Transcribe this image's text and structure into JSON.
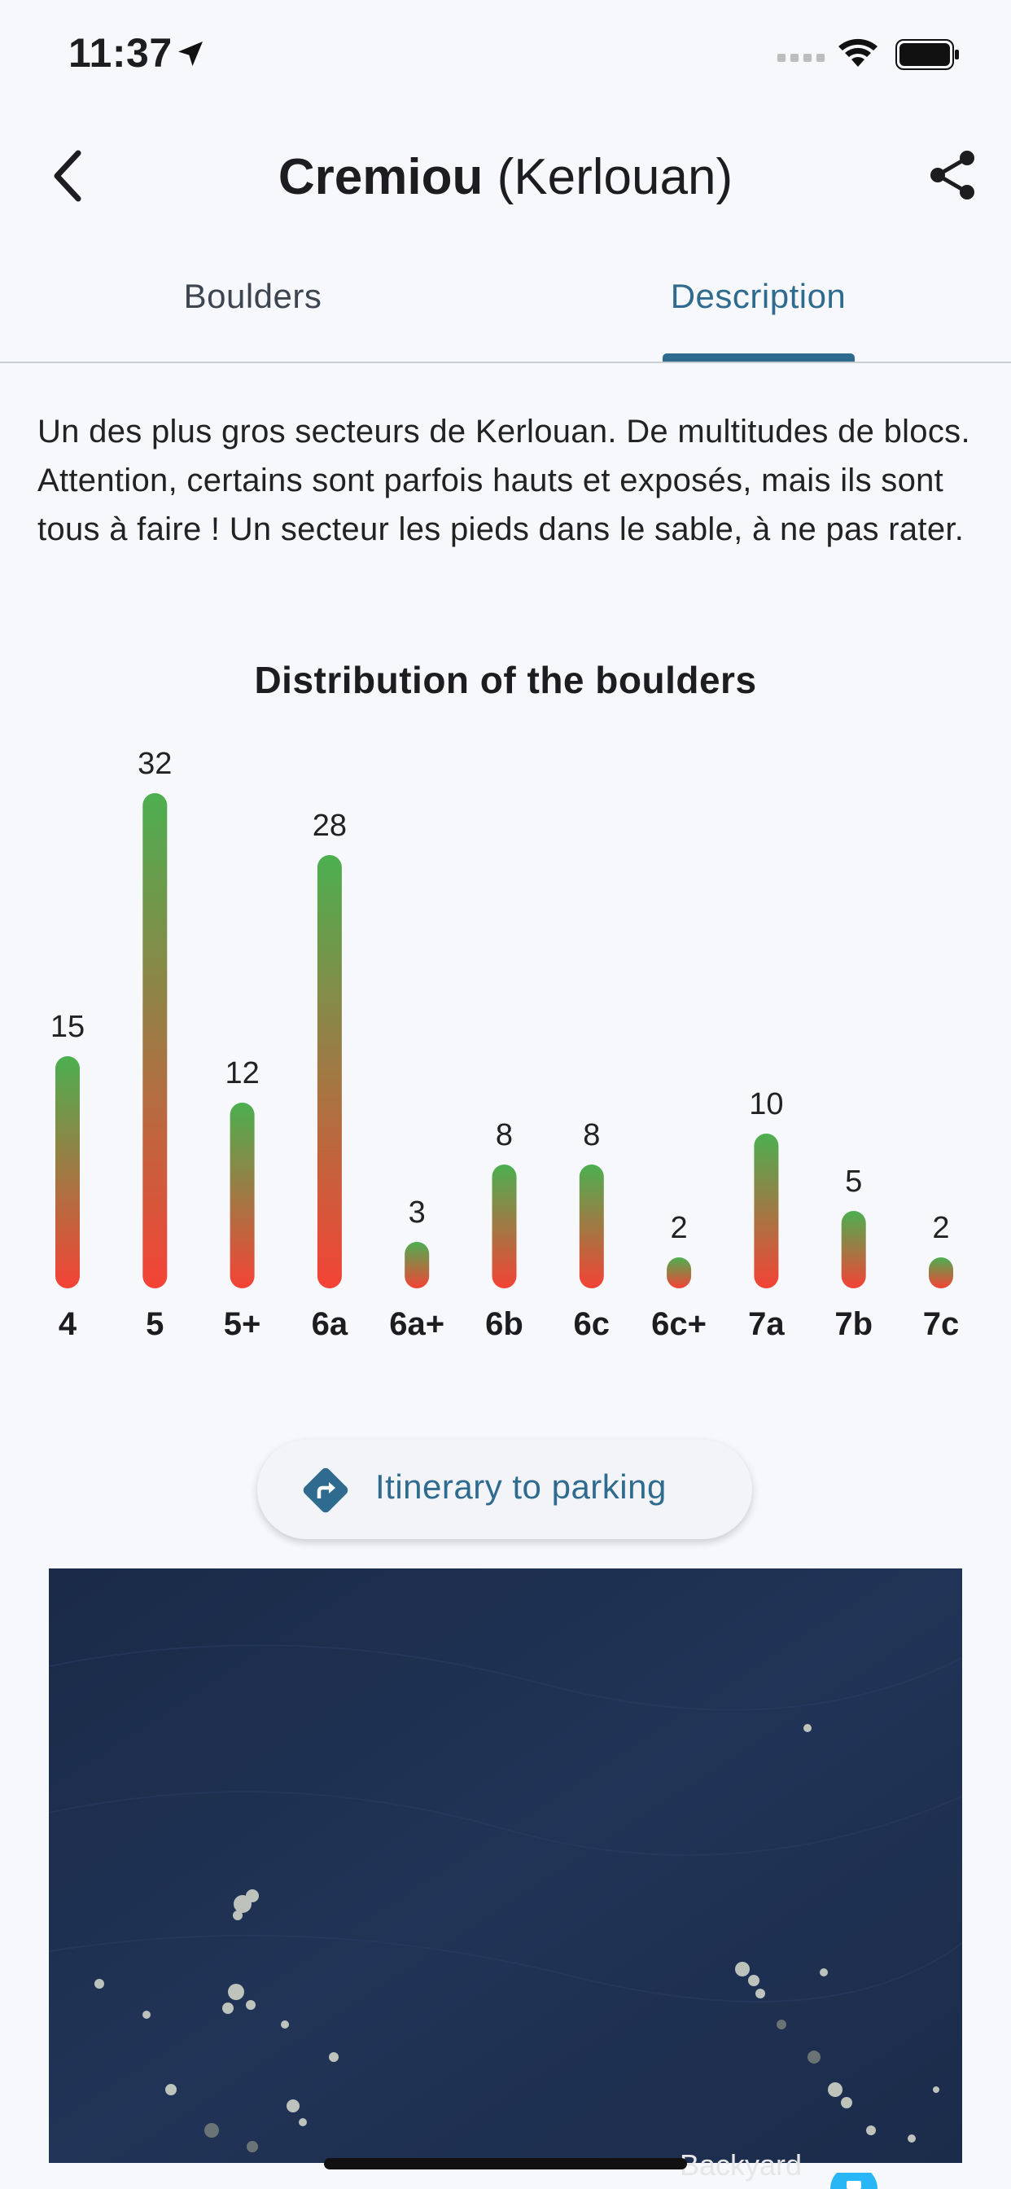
{
  "status_bar": {
    "time": "11:37"
  },
  "nav": {
    "title_bold": "Cremiou",
    "title_light": "(Kerlouan)"
  },
  "tabs": [
    {
      "label": "Boulders",
      "selected": false
    },
    {
      "label": "Description",
      "selected": true
    }
  ],
  "description": "Un des plus gros secteurs de Kerlouan. De multitudes de blocs. Attention, certains sont parfois hauts et exposés, mais ils sont tous à faire ! Un secteur les pieds dans le sable, à ne pas rater.",
  "chart_data": {
    "type": "bar",
    "title": "Distribution of the boulders",
    "categories": [
      "4",
      "5",
      "5+",
      "6a",
      "6a+",
      "6b",
      "6c",
      "6c+",
      "7a",
      "7b",
      "7c"
    ],
    "values": [
      15,
      32,
      12,
      28,
      3,
      8,
      8,
      2,
      10,
      5,
      2
    ],
    "gradient": {
      "top": "#4caf50",
      "bottom": "#f44336"
    },
    "show_data_labels": true,
    "grid": false
  },
  "itinerary": {
    "label": "Itinerary to parking",
    "icon": "directions-icon"
  },
  "map": {
    "attribution": "Backyard",
    "icon": "camera-icon"
  },
  "colors": {
    "accent": "#2f6b8f",
    "background": "#f6f8fc"
  }
}
